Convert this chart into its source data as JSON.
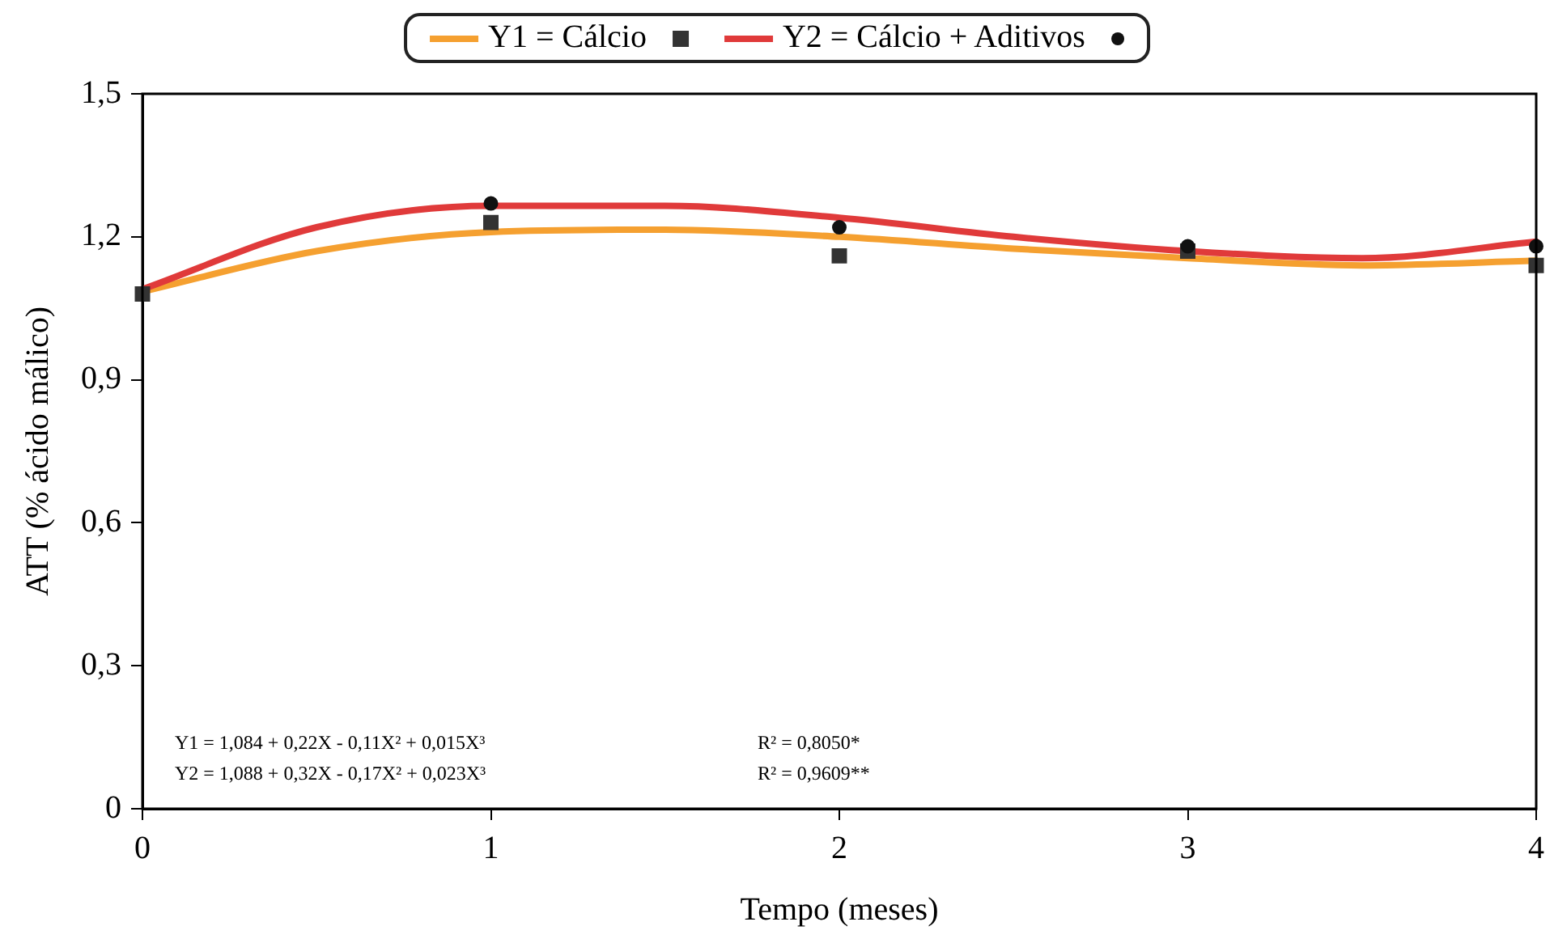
{
  "chart_data": {
    "type": "line",
    "xlabel": "Tempo (meses)",
    "ylabel": "ATT (% ácido málico)",
    "xlim": [
      0,
      4
    ],
    "xticks": [
      0,
      1,
      2,
      3,
      4
    ],
    "ylim": [
      0,
      1.5
    ],
    "yticks": [
      0,
      {
        "value": 0.3,
        "label": "0,3"
      },
      {
        "value": 0.6,
        "label": "0,6"
      },
      {
        "value": 0.9,
        "label": "0,9"
      },
      {
        "value": 1.2,
        "label": "1,2"
      },
      {
        "value": 1.5,
        "label": "1,5"
      }
    ],
    "grid": false,
    "legend": "top",
    "series": [
      {
        "name": "Y1 = Cálcio",
        "type": "line",
        "marker": "none",
        "line_style": "solid",
        "color": "#f5a030",
        "x": [
          0,
          0.5,
          1,
          1.5,
          2,
          2.5,
          3,
          3.5,
          4
        ],
        "values": [
          1.085,
          1.17,
          1.21,
          1.215,
          1.2,
          1.175,
          1.155,
          1.14,
          1.15
        ]
      },
      {
        "type": "scatter",
        "marker": "square",
        "color": "#333333",
        "x": [
          0,
          1,
          2,
          3,
          4
        ],
        "values": [
          1.08,
          1.23,
          1.16,
          1.17,
          1.14
        ]
      },
      {
        "name": "Y2 = Cálcio + Aditivos",
        "type": "line",
        "marker": "none",
        "line_style": "solid",
        "color": "#e03a3a",
        "x": [
          0,
          0.5,
          1,
          1.5,
          2,
          2.5,
          3,
          3.5,
          4
        ],
        "values": [
          1.09,
          1.22,
          1.265,
          1.265,
          1.24,
          1.2,
          1.17,
          1.155,
          1.19
        ]
      },
      {
        "type": "scatter",
        "marker": "circle",
        "color": "#111111",
        "x": [
          1,
          2,
          3,
          4
        ],
        "values": [
          1.27,
          1.22,
          1.18,
          1.18
        ]
      }
    ],
    "annotations": [
      "Y1 = 1,084 + 0,22X - 0,11X² + 0,015X³",
      "R² = 0,8050*",
      "Y2 = 1,088 + 0,32X - 0,17X² + 0,023X³",
      "R² = 0,9609**"
    ]
  }
}
